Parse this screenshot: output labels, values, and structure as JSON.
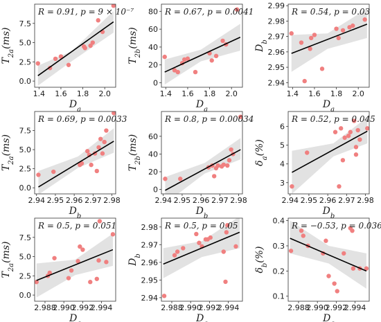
{
  "chart_data": [
    {
      "type": "scatter",
      "xlabel": "D_a",
      "ylabel": "T_2a(ms)",
      "annotation": "R = 0.91, p = 9 × 10⁻⁷",
      "xlim": [
        1.36,
        2.1
      ],
      "ylim": [
        -0.8,
        10
      ],
      "xticks": [
        1.4,
        1.6,
        1.8,
        2.0
      ],
      "xtick_labels": [
        "1.4",
        "1.6",
        "1.8",
        "2.0"
      ],
      "yticks": [
        0,
        2.5,
        5,
        7.5
      ],
      "ytick_labels": [
        "0.0",
        "2.5",
        "5.0",
        "7.5"
      ],
      "points": [
        [
          1.39,
          2.3
        ],
        [
          1.5,
          1.7
        ],
        [
          1.55,
          2.9
        ],
        [
          1.6,
          3.2
        ],
        [
          1.67,
          2.1
        ],
        [
          1.81,
          4.5
        ],
        [
          1.82,
          4.3
        ],
        [
          1.87,
          4.6
        ],
        [
          1.89,
          5.0
        ],
        [
          1.94,
          7.9
        ],
        [
          1.98,
          6.4
        ],
        [
          2.08,
          9.8
        ]
      ],
      "fit": [
        [
          1.39,
          0.7
        ],
        [
          2.08,
          7.7
        ]
      ],
      "band": [
        [
          1.39,
          -0.6,
          2.0
        ],
        [
          1.7,
          2.6,
          3.9
        ],
        [
          2.08,
          6.3,
          9.1
        ]
      ],
      "marker_color": "#f08080",
      "band_color": "#e2e2e2",
      "line_color": "#000000"
    },
    {
      "type": "scatter",
      "xlabel": "D_a",
      "ylabel": "T_2b(ms)",
      "annotation": "R = 0.67, p = 0.0041",
      "xlim": [
        1.36,
        2.1
      ],
      "ylim": [
        -5,
        88
      ],
      "xticks": [
        1.4,
        1.6,
        1.8,
        2.0
      ],
      "xtick_labels": [
        "1.4",
        "1.6",
        "1.8",
        "2.0"
      ],
      "yticks": [
        0,
        20,
        40,
        60,
        80
      ],
      "ytick_labels": [
        "0",
        "20",
        "40",
        "60",
        "80"
      ],
      "points": [
        [
          1.39,
          29
        ],
        [
          1.48,
          14
        ],
        [
          1.51,
          12
        ],
        [
          1.55,
          22
        ],
        [
          1.57,
          26
        ],
        [
          1.6,
          27
        ],
        [
          1.67,
          12
        ],
        [
          1.8,
          33
        ],
        [
          1.82,
          25
        ],
        [
          1.86,
          30
        ],
        [
          1.92,
          47
        ],
        [
          1.95,
          43
        ],
        [
          2.05,
          82
        ]
      ],
      "fit": [
        [
          1.39,
          12
        ],
        [
          2.08,
          51
        ]
      ],
      "band": [
        [
          1.39,
          -2,
          26
        ],
        [
          1.72,
          24,
          37
        ],
        [
          2.08,
          36,
          66
        ]
      ],
      "marker_color": "#f08080",
      "band_color": "#e2e2e2",
      "line_color": "#000000"
    },
    {
      "type": "scatter",
      "xlabel": "D_a",
      "ylabel": "D_b",
      "annotation": "R = 0.54, p = 0.03",
      "xlim": [
        1.36,
        2.1
      ],
      "ylim": [
        2.937,
        2.991
      ],
      "xticks": [
        1.4,
        1.6,
        1.8,
        2.0
      ],
      "xtick_labels": [
        "1.4",
        "1.6",
        "1.8",
        "2.0"
      ],
      "yticks": [
        2.94,
        2.95,
        2.96,
        2.97,
        2.98,
        2.99
      ],
      "ytick_labels": [
        "2.94",
        "2.95",
        "2.96",
        "2.97",
        "2.98",
        "2.99"
      ],
      "points": [
        [
          1.39,
          2.972
        ],
        [
          1.48,
          2.966
        ],
        [
          1.51,
          2.941
        ],
        [
          1.56,
          2.962
        ],
        [
          1.57,
          2.969
        ],
        [
          1.6,
          2.971
        ],
        [
          1.67,
          2.949
        ],
        [
          1.8,
          2.975
        ],
        [
          1.82,
          2.969
        ],
        [
          1.86,
          2.974
        ],
        [
          1.92,
          2.976
        ],
        [
          1.95,
          2.977
        ],
        [
          2.06,
          2.981
        ]
      ],
      "fit": [
        [
          1.39,
          2.959
        ],
        [
          2.08,
          2.978
        ]
      ],
      "band": [
        [
          1.39,
          2.947,
          2.971
        ],
        [
          1.72,
          2.962,
          2.972
        ],
        [
          2.08,
          2.969,
          2.988
        ]
      ],
      "marker_color": "#f08080",
      "band_color": "#e2e2e2",
      "line_color": "#000000"
    },
    {
      "type": "scatter",
      "xlabel": "D_b",
      "ylabel": "T_2a(ms)",
      "annotation": "R = 0.69, p = 0.0033",
      "xlim": [
        2.939,
        2.982
      ],
      "ylim": [
        -0.8,
        10
      ],
      "xticks": [
        2.94,
        2.95,
        2.96,
        2.97,
        2.98
      ],
      "xtick_labels": [
        "2.94",
        "2.95",
        "2.96",
        "2.97",
        "2.98"
      ],
      "yticks": [
        0,
        2.5,
        5,
        7.5
      ],
      "ytick_labels": [
        "0.0",
        "2.5",
        "5.0",
        "7.5"
      ],
      "points": [
        [
          2.941,
          1.7
        ],
        [
          2.949,
          2.1
        ],
        [
          2.963,
          3.0
        ],
        [
          2.964,
          3.2
        ],
        [
          2.967,
          4.8
        ],
        [
          2.968,
          4.3
        ],
        [
          2.969,
          3.0
        ],
        [
          2.971,
          4.5
        ],
        [
          2.972,
          2.2
        ],
        [
          2.973,
          5.3
        ],
        [
          2.974,
          6.4
        ],
        [
          2.975,
          4.5
        ],
        [
          2.976,
          6.0
        ],
        [
          2.977,
          7.5
        ],
        [
          2.981,
          9.8
        ]
      ],
      "fit": [
        [
          2.941,
          0.1
        ],
        [
          2.981,
          6.1
        ]
      ],
      "band": [
        [
          2.941,
          -0.9,
          2.2
        ],
        [
          2.962,
          2.6,
          4.1
        ],
        [
          2.981,
          4.6,
          7.8
        ]
      ],
      "marker_color": "#f08080",
      "band_color": "#e2e2e2",
      "line_color": "#000000"
    },
    {
      "type": "scatter",
      "xlabel": "D_b",
      "ylabel": "T_2b(ms)",
      "annotation": "R = 0.8, p = 0.00034",
      "xlim": [
        2.939,
        2.982
      ],
      "ylim": [
        -5,
        88
      ],
      "xticks": [
        2.94,
        2.95,
        2.96,
        2.97,
        2.98
      ],
      "xtick_labels": [
        "2.94",
        "2.95",
        "2.96",
        "2.97",
        "2.98"
      ],
      "yticks": [
        0,
        20,
        40,
        60
      ],
      "ytick_labels": [
        "0",
        "20",
        "40",
        "60"
      ],
      "points": [
        [
          2.941,
          12
        ],
        [
          2.949,
          12
        ],
        [
          2.964,
          25
        ],
        [
          2.966,
          27
        ],
        [
          2.967,
          15
        ],
        [
          2.968,
          24
        ],
        [
          2.969,
          27
        ],
        [
          2.971,
          26
        ],
        [
          2.972,
          28
        ],
        [
          2.974,
          27
        ],
        [
          2.975,
          33
        ],
        [
          2.976,
          45
        ],
        [
          2.977,
          40
        ],
        [
          2.981,
          82
        ]
      ],
      "fit": [
        [
          2.941,
          -1
        ],
        [
          2.981,
          45
        ]
      ],
      "band": [
        [
          2.941,
          -16,
          14
        ],
        [
          2.962,
          18,
          30
        ],
        [
          2.981,
          34,
          58
        ]
      ],
      "marker_color": "#f08080",
      "band_color": "#e2e2e2",
      "line_color": "#000000"
    },
    {
      "type": "scatter",
      "xlabel": "D_b",
      "ylabel": "δ_a(%)",
      "annotation": "R = 0.52, p = 0.045",
      "xlim": [
        2.939,
        2.982
      ],
      "ylim": [
        2.4,
        6.8
      ],
      "xticks": [
        2.94,
        2.95,
        2.96,
        2.97,
        2.98
      ],
      "xtick_labels": [
        "2.94",
        "2.95",
        "2.96",
        "2.97",
        "2.98"
      ],
      "yticks": [
        3,
        4,
        5,
        6
      ],
      "ytick_labels": [
        "3",
        "4",
        "5",
        "6"
      ],
      "points": [
        [
          2.941,
          2.8
        ],
        [
          2.949,
          4.6
        ],
        [
          2.964,
          5.7
        ],
        [
          2.966,
          2.8
        ],
        [
          2.967,
          5.9
        ],
        [
          2.968,
          4.2
        ],
        [
          2.969,
          5.4
        ],
        [
          2.971,
          5.5
        ],
        [
          2.972,
          5.7
        ],
        [
          2.974,
          6.3
        ],
        [
          2.975,
          4.9
        ],
        [
          2.975,
          4.5
        ],
        [
          2.976,
          5.8
        ],
        [
          2.977,
          5.3
        ],
        [
          2.981,
          5.9
        ]
      ],
      "fit": [
        [
          2.941,
          3.55
        ],
        [
          2.981,
          5.75
        ]
      ],
      "band": [
        [
          2.941,
          2.4,
          4.7
        ],
        [
          2.963,
          4.4,
          5.1
        ],
        [
          2.981,
          5.1,
          6.5
        ]
      ],
      "marker_color": "#f08080",
      "band_color": "#e2e2e2",
      "line_color": "#000000"
    },
    {
      "type": "scatter",
      "xlabel": "D_c",
      "ylabel": "T_2a(ms)",
      "annotation": "R = 0.5, p = 0.051",
      "xlim": [
        2.9869,
        2.9955
      ],
      "ylim": [
        -0.8,
        10
      ],
      "xticks": [
        2.988,
        2.99,
        2.992,
        2.994
      ],
      "xtick_labels": [
        "2.988",
        "2.990",
        "2.992",
        "2.994"
      ],
      "yticks": [
        0,
        2.5,
        5,
        7.5
      ],
      "ytick_labels": [
        "0.0",
        "2.5",
        "5.0",
        "7.5"
      ],
      "points": [
        [
          2.9871,
          1.7
        ],
        [
          2.9883,
          2.5
        ],
        [
          2.9885,
          2.9
        ],
        [
          2.989,
          4.8
        ],
        [
          2.9905,
          2.2
        ],
        [
          2.9908,
          3.2
        ],
        [
          2.9915,
          4.4
        ],
        [
          2.9917,
          6.3
        ],
        [
          2.992,
          5.9
        ],
        [
          2.9928,
          1.7
        ],
        [
          2.9935,
          2.1
        ],
        [
          2.9937,
          4.5
        ],
        [
          2.9938,
          9.6
        ],
        [
          2.9945,
          4.3
        ],
        [
          2.9952,
          7.9
        ]
      ],
      "fit": [
        [
          2.9871,
          1.9
        ],
        [
          2.9952,
          5.9
        ]
      ],
      "band": [
        [
          2.9871,
          -0.3,
          4.1
        ],
        [
          2.9912,
          2.6,
          4.6
        ],
        [
          2.9952,
          3.8,
          8.0
        ]
      ],
      "marker_color": "#f08080",
      "band_color": "#e2e2e2",
      "line_color": "#000000"
    },
    {
      "type": "scatter",
      "xlabel": "D_c",
      "ylabel": "D_b",
      "annotation": "R = 0.5, p = 0.05",
      "xlim": [
        2.9869,
        2.9955
      ],
      "ylim": [
        2.938,
        2.985
      ],
      "xticks": [
        2.988,
        2.99,
        2.992,
        2.994
      ],
      "xtick_labels": [
        "2.988",
        "2.990",
        "2.992",
        "2.994"
      ],
      "yticks": [
        2.94,
        2.95,
        2.96,
        2.97,
        2.98
      ],
      "ytick_labels": [
        "2.94",
        "2.95",
        "2.96",
        "2.97",
        "2.98"
      ],
      "points": [
        [
          2.9872,
          2.941
        ],
        [
          2.9883,
          2.964
        ],
        [
          2.9886,
          2.966
        ],
        [
          2.9892,
          2.968
        ],
        [
          2.9906,
          2.976
        ],
        [
          2.9909,
          2.971
        ],
        [
          2.9912,
          2.969
        ],
        [
          2.9916,
          2.973
        ],
        [
          2.9918,
          2.973
        ],
        [
          2.9921,
          2.974
        ],
        [
          2.9935,
          2.966
        ],
        [
          2.9937,
          2.949
        ],
        [
          2.9938,
          2.977
        ],
        [
          2.9939,
          2.981
        ],
        [
          2.9948,
          2.969
        ]
      ],
      "fit": [
        [
          2.9871,
          2.959
        ],
        [
          2.9952,
          2.977
        ]
      ],
      "band": [
        [
          2.9871,
          2.951,
          2.968
        ],
        [
          2.9912,
          2.963,
          2.972
        ],
        [
          2.9952,
          2.968,
          2.986
        ]
      ],
      "marker_color": "#f08080",
      "band_color": "#e2e2e2",
      "line_color": "#000000"
    },
    {
      "type": "scatter",
      "xlabel": "D_c",
      "ylabel": "δ_b(%)",
      "annotation": "R = −0.53, p = 0.036",
      "xlim": [
        2.9869,
        2.9955
      ],
      "ylim": [
        0.08,
        0.41
      ],
      "xticks": [
        2.988,
        2.99,
        2.992,
        2.994
      ],
      "xtick_labels": [
        "2.988",
        "2.990",
        "2.992",
        "2.994"
      ],
      "yticks": [
        0.1,
        0.2,
        0.3,
        0.4
      ],
      "ytick_labels": [
        "0.1",
        "0.2",
        "0.3",
        "0.4"
      ],
      "points": [
        [
          2.9872,
          0.28
        ],
        [
          2.9883,
          0.36
        ],
        [
          2.9885,
          0.34
        ],
        [
          2.989,
          0.3
        ],
        [
          2.9906,
          0.27
        ],
        [
          2.9909,
          0.32
        ],
        [
          2.9912,
          0.18
        ],
        [
          2.9918,
          0.15
        ],
        [
          2.9921,
          0.12
        ],
        [
          2.9928,
          0.27
        ],
        [
          2.9935,
          0.37
        ],
        [
          2.9937,
          0.36
        ],
        [
          2.9938,
          0.21
        ],
        [
          2.9945,
          0.21
        ],
        [
          2.9952,
          0.21
        ]
      ],
      "fit": [
        [
          2.9871,
          0.33
        ],
        [
          2.9952,
          0.2
        ]
      ],
      "band": [
        [
          2.9871,
          0.27,
          0.4
        ],
        [
          2.9912,
          0.23,
          0.3
        ],
        [
          2.9952,
          0.13,
          0.27
        ]
      ],
      "marker_color": "#f08080",
      "band_color": "#e2e2e2",
      "line_color": "#000000"
    }
  ]
}
